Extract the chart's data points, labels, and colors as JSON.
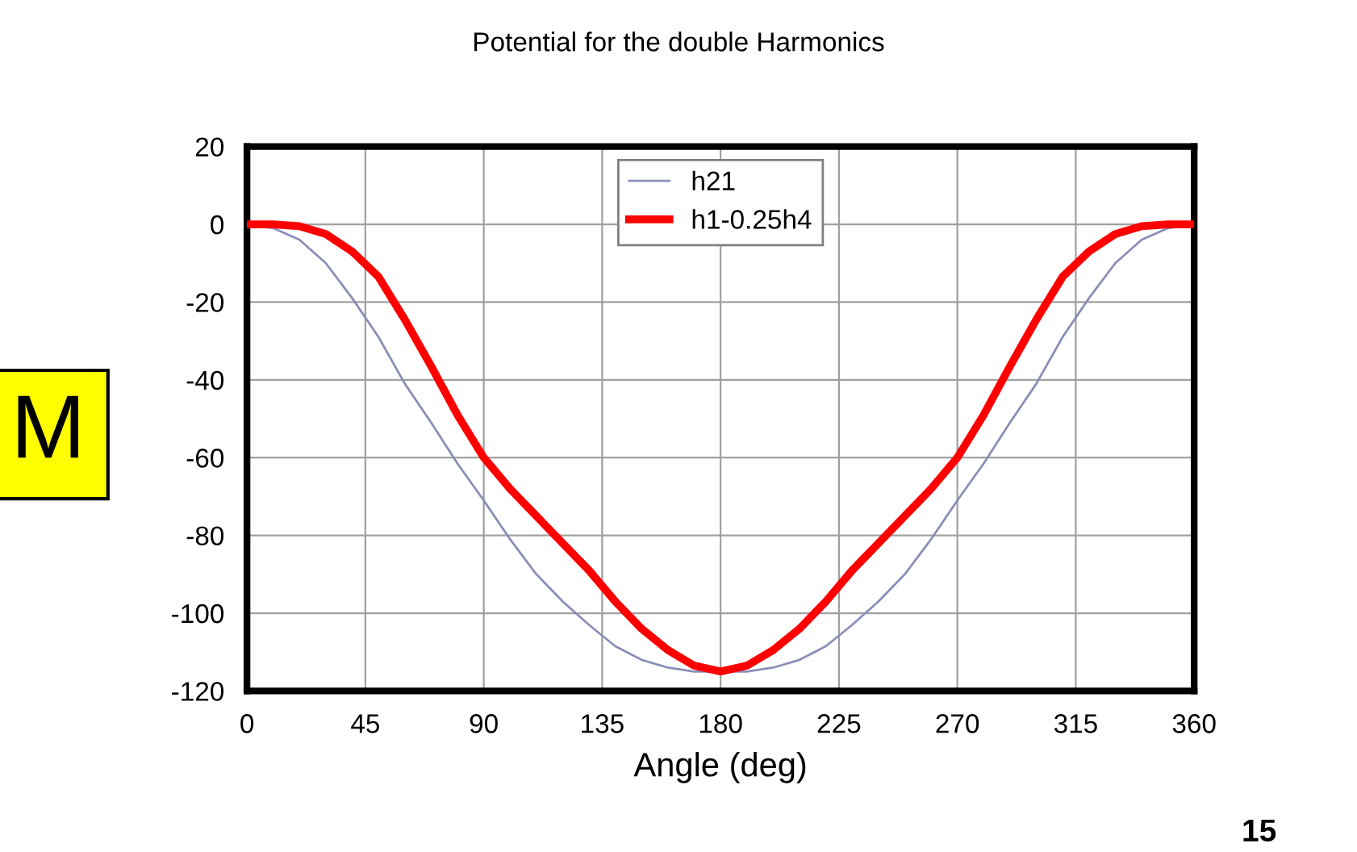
{
  "chart_data": {
    "type": "line",
    "title": "Potential for the double Harmonics",
    "xlabel": "Angle (deg)",
    "x": [
      0,
      10,
      20,
      30,
      40,
      50,
      60,
      70,
      80,
      90,
      100,
      110,
      120,
      130,
      140,
      150,
      160,
      170,
      180,
      190,
      200,
      210,
      220,
      230,
      240,
      250,
      260,
      270,
      280,
      290,
      300,
      310,
      320,
      330,
      340,
      350,
      360
    ],
    "series": [
      {
        "name": "h21",
        "color": "#8a8fb8",
        "values": [
          0,
          -1,
          -4,
          -10,
          -19,
          -29,
          -41,
          -51,
          -61.5,
          -71,
          -81,
          -90,
          -97,
          -103,
          -108.5,
          -112,
          -114,
          -115,
          -115,
          -115,
          -114,
          -112,
          -108.5,
          -103,
          -97,
          -90,
          -81,
          -71,
          -61.5,
          -51,
          -41,
          -29,
          -19,
          -10,
          -4,
          -1,
          0
        ]
      },
      {
        "name": "h1-0.25h4",
        "color": "#ff0000",
        "values": [
          0,
          0,
          -0.5,
          -2.5,
          -7,
          -13.5,
          -24.5,
          -36.5,
          -49,
          -60,
          -68,
          -75,
          -82,
          -89,
          -97,
          -104,
          -109.5,
          -113.5,
          -115,
          -113.5,
          -109.5,
          -104,
          -97,
          -89,
          -82,
          -75,
          -68,
          -60,
          -49,
          -36.5,
          -24.5,
          -13.5,
          -7,
          -2.5,
          -0.5,
          0,
          0
        ]
      }
    ],
    "xlim": [
      0,
      360
    ],
    "xticks": [
      0,
      45,
      90,
      135,
      180,
      225,
      270,
      315,
      360
    ],
    "ylim": [
      -120,
      20
    ],
    "yticks": [
      -120,
      -100,
      -80,
      -60,
      -40,
      -20,
      0,
      20
    ],
    "grid": true,
    "legend": "top",
    "marker": "none",
    "line_style": "solid",
    "annotations": [
      "M",
      "15"
    ]
  }
}
